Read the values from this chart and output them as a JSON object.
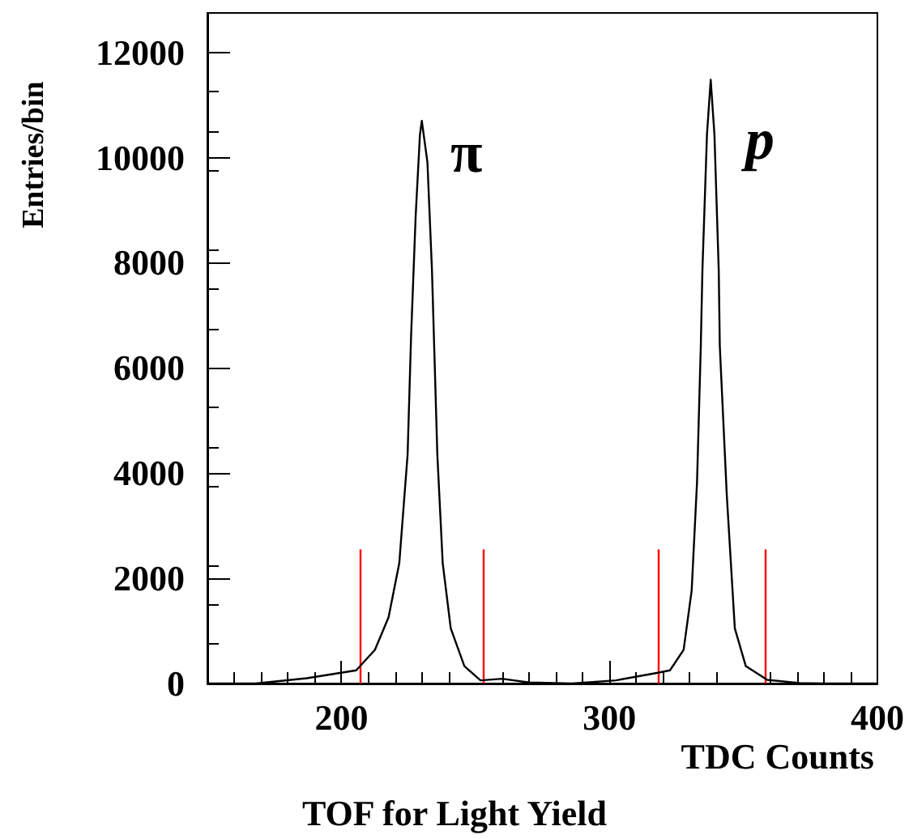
{
  "chart_data": {
    "type": "line",
    "title": "TOF for Light Yield",
    "xlabel": "TDC Counts",
    "ylabel": "Entries/bin",
    "x": [
      150,
      168,
      187,
      205.5,
      212.5,
      217.6,
      221.6,
      224.7,
      226,
      227.7,
      229.3,
      230,
      232.1,
      233.8,
      235.8,
      237.8,
      240.8,
      245.9,
      251.9,
      260,
      270,
      286,
      302.4,
      317.6,
      322.6,
      327.7,
      330.7,
      332.7,
      334.1,
      334.7,
      336.4,
      337.8,
      339.2,
      340.8,
      341.2,
      343.8,
      346.8,
      350.9,
      358.9,
      371,
      380,
      400
    ],
    "series": [
      {
        "color": "#000000",
        "values": [
          0,
          0,
          100,
          250,
          640,
          1260,
          2290,
          4350,
          6600,
          8880,
          10430,
          10700,
          9910,
          7850,
          4350,
          2290,
          1050,
          330,
          60,
          90,
          20,
          0,
          60,
          200,
          250,
          640,
          1770,
          3830,
          6410,
          7850,
          10430,
          11480,
          10430,
          7850,
          6410,
          3580,
          1050,
          330,
          70,
          10,
          0,
          0
        ]
      }
    ],
    "xlim": [
      150,
      400
    ],
    "xticks": [
      200,
      300,
      400
    ],
    "ylim": [
      0,
      12750
    ],
    "yticks": [
      0,
      2000,
      4000,
      6000,
      8000,
      10000,
      12000
    ],
    "ref_lines": [
      {
        "axis": "x",
        "value": 207,
        "color": "#ff0000"
      },
      {
        "axis": "x",
        "value": 253,
        "color": "#ff0000"
      },
      {
        "axis": "x",
        "value": 318,
        "color": "#ff0000"
      },
      {
        "axis": "x",
        "value": 358,
        "color": "#ff0000"
      }
    ],
    "annotations": [
      "π",
      "p"
    ],
    "grid": false,
    "marker": "none",
    "line_style": "solid"
  }
}
